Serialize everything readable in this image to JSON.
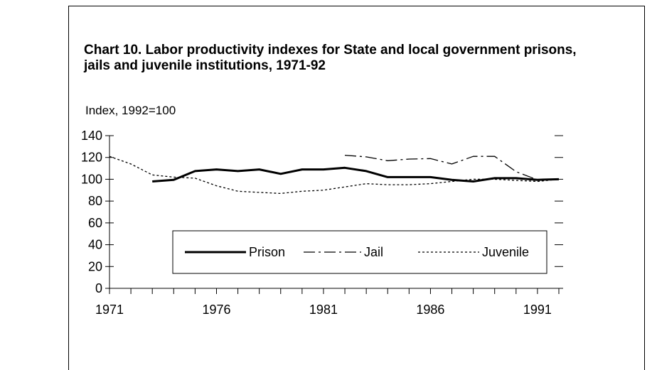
{
  "chart_data": {
    "type": "line",
    "title": "Chart 10.  Labor productivity indexes for State and local government prisons, jails and juvenile institutions, 1971-92",
    "ylabel": "Index, 1992=100",
    "xlabel": "",
    "xlim": [
      1971,
      1992
    ],
    "ylim": [
      0,
      140
    ],
    "yticks": [
      0,
      20,
      40,
      60,
      80,
      100,
      120,
      140
    ],
    "xtick_labels": [
      "1971",
      "1976",
      "1981",
      "1986",
      "1991"
    ],
    "xtick_values": [
      1971,
      1976,
      1981,
      1986,
      1991
    ],
    "legend_position": "lower-right",
    "series": [
      {
        "name": "Prison",
        "style": "solid",
        "x": [
          1973,
          1974,
          1975,
          1976,
          1977,
          1978,
          1979,
          1980,
          1981,
          1982,
          1983,
          1984,
          1985,
          1986,
          1987,
          1988,
          1989,
          1990,
          1991,
          1992
        ],
        "y": [
          98,
          99.5,
          107.5,
          109,
          107.5,
          109,
          105,
          109,
          109,
          110.5,
          107.5,
          102,
          102,
          102,
          99.5,
          98,
          101,
          101,
          99.5,
          100
        ]
      },
      {
        "name": "Jail",
        "style": "dash-dot",
        "x": [
          1982,
          1983,
          1984,
          1985,
          1986,
          1987,
          1988,
          1989,
          1990,
          1991,
          1992
        ],
        "y": [
          122,
          120.5,
          117,
          118.5,
          119,
          114,
          121,
          121,
          107,
          99.5,
          100
        ]
      },
      {
        "name": "Juvenile",
        "style": "dotted",
        "x": [
          1971,
          1972,
          1973,
          1974,
          1975,
          1976,
          1977,
          1978,
          1979,
          1980,
          1981,
          1982,
          1983,
          1984,
          1985,
          1986,
          1987,
          1988,
          1989,
          1990,
          1991,
          1992
        ],
        "y": [
          121,
          114,
          104,
          102,
          101,
          94,
          89,
          88,
          87,
          89,
          90,
          93,
          96,
          95,
          95,
          96,
          98,
          100,
          100,
          99,
          98,
          100
        ]
      }
    ]
  }
}
